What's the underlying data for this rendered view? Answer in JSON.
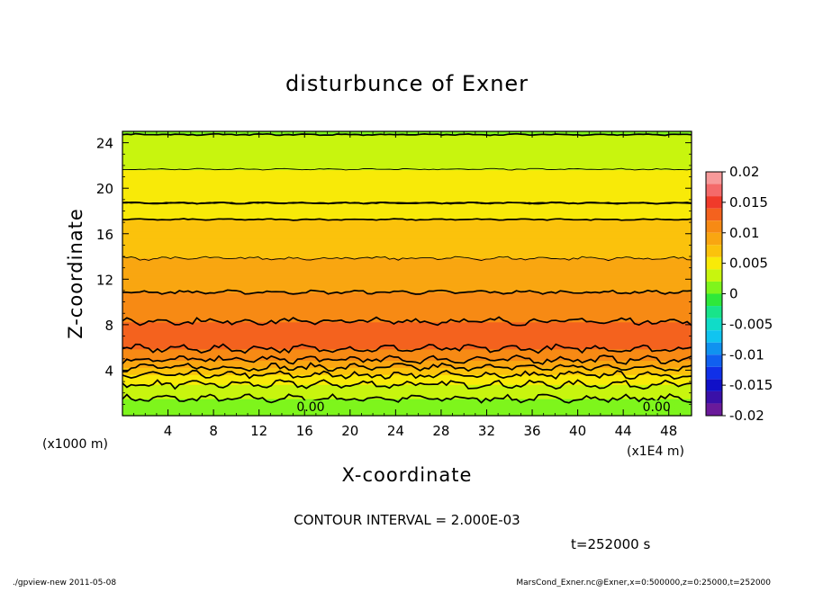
{
  "chart_data": {
    "type": "heatmap",
    "title": "disturbunce of Exner",
    "xlabel": "X-coordinate",
    "ylabel": "Z-coordinate",
    "x_unit": "(x1000 m)",
    "x_scale_note": "(x1E4 m)",
    "x_ticks": [
      "4",
      "8",
      "12",
      "16",
      "20",
      "24",
      "28",
      "32",
      "36",
      "40",
      "44",
      "48"
    ],
    "x_tick_values": [
      4,
      8,
      12,
      16,
      20,
      24,
      28,
      32,
      36,
      40,
      44,
      48
    ],
    "xlim": [
      0,
      50
    ],
    "y_ticks": [
      "4",
      "8",
      "12",
      "16",
      "20",
      "24"
    ],
    "y_tick_values": [
      4,
      8,
      12,
      16,
      20,
      24
    ],
    "ylim": [
      0,
      25
    ],
    "colorbar": {
      "ticks": [
        "0.02",
        "0.015",
        "0.01",
        "0.005",
        "0",
        "-0.005",
        "-0.01",
        "-0.015",
        "-0.02"
      ],
      "tick_values": [
        0.02,
        0.015,
        0.01,
        0.005,
        0,
        -0.005,
        -0.01,
        -0.015,
        -0.02
      ],
      "range": [
        -0.02,
        0.02
      ],
      "levels": [
        {
          "from": 0.018,
          "to": 0.02,
          "color": "#f79a9a"
        },
        {
          "from": 0.016,
          "to": 0.018,
          "color": "#f46a6a"
        },
        {
          "from": 0.014,
          "to": 0.016,
          "color": "#f03a2a"
        },
        {
          "from": 0.012,
          "to": 0.014,
          "color": "#f4621e"
        },
        {
          "from": 0.01,
          "to": 0.012,
          "color": "#f78a14"
        },
        {
          "from": 0.008,
          "to": 0.01,
          "color": "#f9a611"
        },
        {
          "from": 0.006,
          "to": 0.008,
          "color": "#fbc20c"
        },
        {
          "from": 0.004,
          "to": 0.006,
          "color": "#f8ea08"
        },
        {
          "from": 0.002,
          "to": 0.004,
          "color": "#c8f50e"
        },
        {
          "from": 0.0,
          "to": 0.002,
          "color": "#7ef51c"
        },
        {
          "from": -0.002,
          "to": 0.0,
          "color": "#2ee83a"
        },
        {
          "from": -0.004,
          "to": -0.002,
          "color": "#18e48a"
        },
        {
          "from": -0.006,
          "to": -0.004,
          "color": "#10dcc8"
        },
        {
          "from": -0.008,
          "to": -0.006,
          "color": "#10c4f0"
        },
        {
          "from": -0.01,
          "to": -0.008,
          "color": "#1092f0"
        },
        {
          "from": -0.012,
          "to": -0.01,
          "color": "#1060f0"
        },
        {
          "from": -0.014,
          "to": -0.012,
          "color": "#1030e8"
        },
        {
          "from": -0.016,
          "to": -0.014,
          "color": "#1010c8"
        },
        {
          "from": -0.018,
          "to": -0.016,
          "color": "#3a10a8"
        },
        {
          "from": -0.02,
          "to": -0.018,
          "color": "#6a1a9a"
        }
      ]
    },
    "vertical_profile": [
      {
        "z": 0.0,
        "value": 0.0003
      },
      {
        "z": 0.5,
        "value": 0.0007
      },
      {
        "z": 1.0,
        "value": 0.0013
      },
      {
        "z": 1.5,
        "value": 0.002
      },
      {
        "z": 2.0,
        "value": 0.0027
      },
      {
        "z": 2.5,
        "value": 0.0035
      },
      {
        "z": 3.0,
        "value": 0.0045
      },
      {
        "z": 3.5,
        "value": 0.0058
      },
      {
        "z": 4.0,
        "value": 0.0072
      },
      {
        "z": 4.5,
        "value": 0.0088
      },
      {
        "z": 5.0,
        "value": 0.0102
      },
      {
        "z": 5.5,
        "value": 0.0113
      },
      {
        "z": 6.0,
        "value": 0.0122
      },
      {
        "z": 6.5,
        "value": 0.0129
      },
      {
        "z": 7.0,
        "value": 0.0132
      },
      {
        "z": 7.5,
        "value": 0.013
      },
      {
        "z": 8.0,
        "value": 0.0123
      },
      {
        "z": 9.0,
        "value": 0.0113
      },
      {
        "z": 10.0,
        "value": 0.0106
      },
      {
        "z": 11.0,
        "value": 0.0099
      },
      {
        "z": 12.0,
        "value": 0.0092
      },
      {
        "z": 13.0,
        "value": 0.0085
      },
      {
        "z": 14.0,
        "value": 0.0079
      },
      {
        "z": 15.0,
        "value": 0.0073
      },
      {
        "z": 16.0,
        "value": 0.0067
      },
      {
        "z": 17.0,
        "value": 0.0062
      },
      {
        "z": 18.0,
        "value": 0.0054
      },
      {
        "z": 18.7,
        "value": 0.006
      },
      {
        "z": 19.0,
        "value": 0.0052
      },
      {
        "z": 20.0,
        "value": 0.0046
      },
      {
        "z": 21.0,
        "value": 0.0042
      },
      {
        "z": 22.0,
        "value": 0.0039
      },
      {
        "z": 23.0,
        "value": 0.0032
      },
      {
        "z": 24.0,
        "value": 0.0025
      },
      {
        "z": 25.0,
        "value": 0.0018
      }
    ],
    "contour_interval": 0.002,
    "contour_labels": [
      {
        "x": 15.3,
        "z": 0.7,
        "text": "0.00"
      },
      {
        "x": 45.7,
        "z": 0.7,
        "text": "0.00"
      }
    ]
  },
  "annotations": {
    "contour_interval_text": "CONTOUR INTERVAL = 2.000E-03",
    "time_text": "t=252000 s",
    "footer_left": "./gpview-new   2011-05-08",
    "footer_right": "MarsCond_Exner.nc@Exner,x=0:500000,z=0:25000,t=252000"
  }
}
